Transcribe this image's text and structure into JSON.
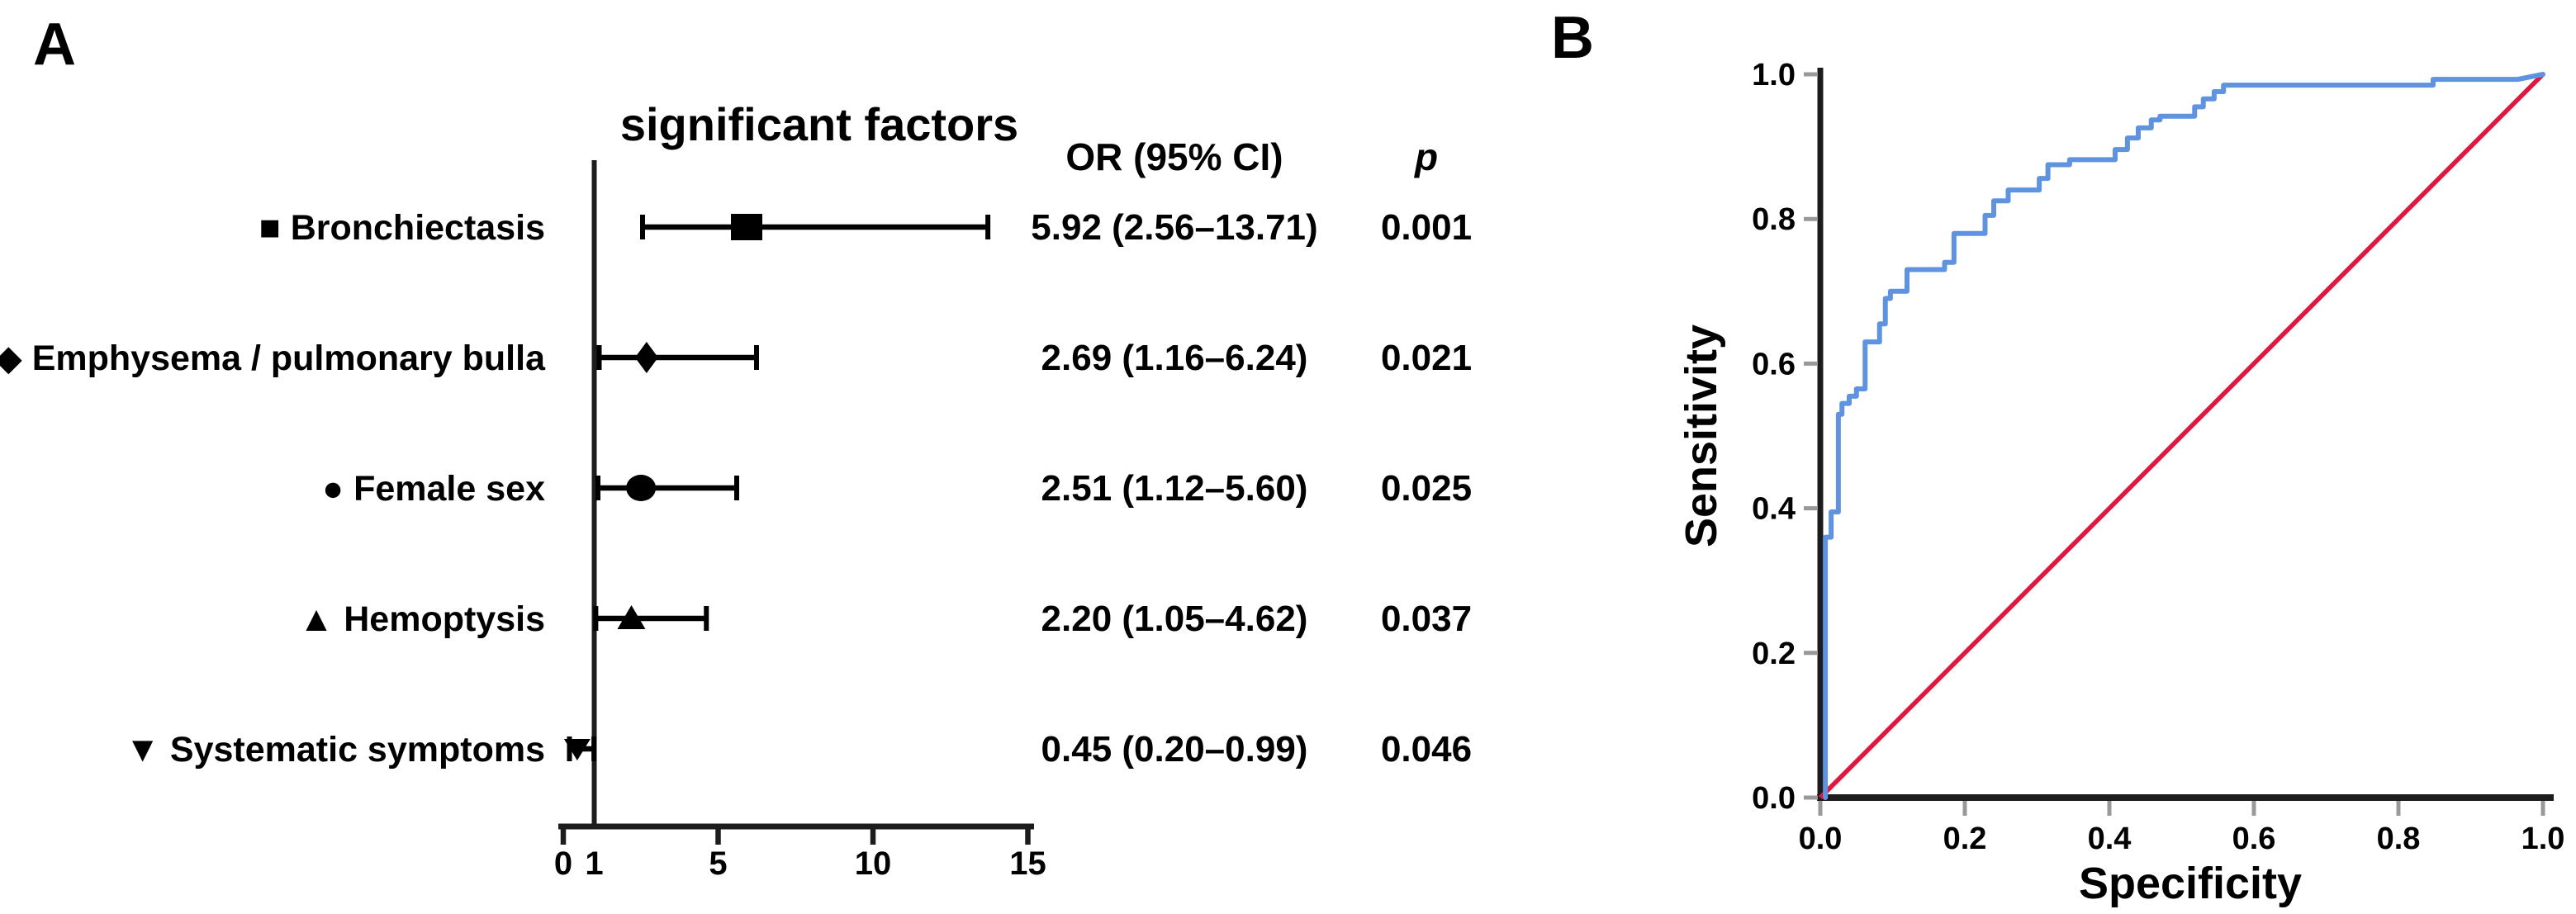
{
  "figure": {
    "panel_a_label": "A",
    "panel_b_label": "B"
  },
  "colors": {
    "axis_black": "#1c1c1c",
    "tick_gray": "#999999",
    "roc_blue": "#5f93e0",
    "diagonal_red": "#e0173f",
    "text_black": "#000000"
  },
  "chart_data": [
    {
      "type": "forest",
      "panel": "A",
      "title": "significant factors",
      "columns": {
        "or_header": "OR (95% CI)",
        "p_header": "p"
      },
      "x_axis": {
        "xlim": [
          0,
          15
        ],
        "tick_label_values": [
          0,
          1,
          5,
          10,
          15
        ],
        "tick_labels": [
          "0",
          "1",
          "5",
          "10",
          "15"
        ],
        "tick_marks": [
          0,
          5,
          10,
          15
        ],
        "reference_line": 1
      },
      "rows": [
        {
          "label": "Bronchiectasis",
          "marker": "square",
          "marker_glyph": "■",
          "or": 5.92,
          "ci_low": 2.56,
          "ci_high": 13.71,
          "or_text": "5.92 (2.56–13.71)",
          "p": "0.001"
        },
        {
          "label": "Emphysema / pulmonary bulla",
          "marker": "diamond",
          "marker_glyph": "◆",
          "or": 2.69,
          "ci_low": 1.16,
          "ci_high": 6.24,
          "or_text": "2.69 (1.16–6.24)",
          "p": "0.021"
        },
        {
          "label": "Female sex",
          "marker": "circle",
          "marker_glyph": "●",
          "or": 2.51,
          "ci_low": 1.12,
          "ci_high": 5.6,
          "or_text": "2.51 (1.12–5.60)",
          "p": "0.025"
        },
        {
          "label": "Hemoptysis",
          "marker": "triangle-up",
          "marker_glyph": "▲",
          "or": 2.2,
          "ci_low": 1.05,
          "ci_high": 4.62,
          "or_text": "2.20 (1.05–4.62)",
          "p": "0.037"
        },
        {
          "label": "Systematic symptoms",
          "marker": "triangle-down",
          "marker_glyph": "▼",
          "or": 0.45,
          "ci_low": 0.2,
          "ci_high": 0.99,
          "or_text": "0.45 (0.20–0.99)",
          "p": "0.046"
        }
      ]
    },
    {
      "type": "line",
      "panel": "B",
      "xlabel": "Specificity",
      "ylabel": "Sensitivity",
      "xlim": [
        0,
        1
      ],
      "ylim": [
        0,
        1
      ],
      "x_ticks": {
        "values": [
          0,
          0.2,
          0.4,
          0.6,
          0.8,
          1.0
        ],
        "labels": [
          "0.0",
          "0.2",
          "0.4",
          "0.6",
          "0.8",
          "1.0"
        ]
      },
      "y_ticks": {
        "values": [
          0,
          0.2,
          0.4,
          0.6,
          0.8,
          1.0
        ],
        "labels": [
          "0.0",
          "0.2",
          "0.4",
          "0.6",
          "0.8",
          "1.0"
        ]
      },
      "grid": false,
      "legend": "none",
      "series": [
        {
          "name": "ROC curve",
          "color": "#5f93e0",
          "points": [
            [
              0.007,
              0.0
            ],
            [
              0.007,
              0.035
            ],
            [
              0.007,
              0.36
            ],
            [
              0.015,
              0.36
            ],
            [
              0.015,
              0.395
            ],
            [
              0.025,
              0.395
            ],
            [
              0.025,
              0.53
            ],
            [
              0.03,
              0.53
            ],
            [
              0.03,
              0.545
            ],
            [
              0.04,
              0.545
            ],
            [
              0.04,
              0.555
            ],
            [
              0.05,
              0.555
            ],
            [
              0.05,
              0.565
            ],
            [
              0.062,
              0.565
            ],
            [
              0.062,
              0.63
            ],
            [
              0.082,
              0.63
            ],
            [
              0.082,
              0.655
            ],
            [
              0.09,
              0.655
            ],
            [
              0.09,
              0.69
            ],
            [
              0.097,
              0.69
            ],
            [
              0.097,
              0.7
            ],
            [
              0.12,
              0.7
            ],
            [
              0.12,
              0.73
            ],
            [
              0.172,
              0.73
            ],
            [
              0.172,
              0.74
            ],
            [
              0.185,
              0.74
            ],
            [
              0.185,
              0.78
            ],
            [
              0.228,
              0.78
            ],
            [
              0.228,
              0.805
            ],
            [
              0.24,
              0.805
            ],
            [
              0.24,
              0.825
            ],
            [
              0.26,
              0.825
            ],
            [
              0.26,
              0.84
            ],
            [
              0.303,
              0.84
            ],
            [
              0.303,
              0.856
            ],
            [
              0.315,
              0.856
            ],
            [
              0.315,
              0.875
            ],
            [
              0.345,
              0.875
            ],
            [
              0.345,
              0.882
            ],
            [
              0.408,
              0.882
            ],
            [
              0.408,
              0.896
            ],
            [
              0.425,
              0.896
            ],
            [
              0.425,
              0.912
            ],
            [
              0.44,
              0.912
            ],
            [
              0.44,
              0.926
            ],
            [
              0.458,
              0.926
            ],
            [
              0.458,
              0.937
            ],
            [
              0.47,
              0.937
            ],
            [
              0.47,
              0.942
            ],
            [
              0.518,
              0.942
            ],
            [
              0.518,
              0.955
            ],
            [
              0.53,
              0.955
            ],
            [
              0.53,
              0.966
            ],
            [
              0.545,
              0.966
            ],
            [
              0.545,
              0.976
            ],
            [
              0.558,
              0.976
            ],
            [
              0.558,
              0.985
            ],
            [
              0.848,
              0.985
            ],
            [
              0.848,
              0.993
            ],
            [
              0.965,
              0.993
            ],
            [
              1.0,
              1.0
            ]
          ]
        },
        {
          "name": "Reference diagonal",
          "color": "#e0173f",
          "points": [
            [
              0,
              0
            ],
            [
              1,
              1
            ]
          ]
        }
      ]
    }
  ]
}
